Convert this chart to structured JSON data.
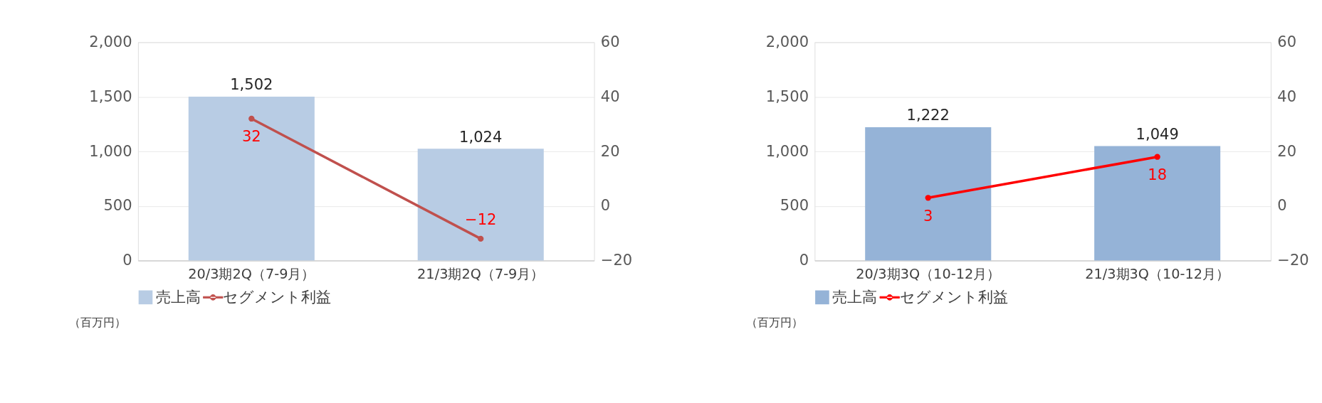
{
  "chart_data": [
    {
      "type": "bar",
      "categories": [
        "20/3期2Q（7-9月）",
        "21/3期2Q（7-9月）"
      ],
      "series": [
        {
          "name": "売上高",
          "color": "#b8cce4",
          "values": [
            1502,
            1024
          ],
          "value_labels": [
            "1,502",
            "1,024"
          ]
        },
        {
          "name": "セグメント利益",
          "type": "line",
          "axis": "y2",
          "color": "#c0504d",
          "values": [
            32,
            -12
          ],
          "value_labels": [
            "32",
            "−12"
          ]
        }
      ],
      "ylim": [
        0,
        2000
      ],
      "yticks": [
        0,
        {
          "value": 500,
          "label": "500"
        },
        {
          "value": 1000,
          "label": "1,000"
        },
        {
          "value": 1500,
          "label": "1,500"
        },
        {
          "value": 2000,
          "label": "2,000"
        }
      ],
      "y2lim": [
        -20,
        60
      ],
      "y2ticks": [
        {
          "value": -20,
          "label": "−20"
        },
        0,
        20,
        40,
        60
      ],
      "legend": "bottom",
      "grid": "y",
      "marker": "circle",
      "line_style": "solid",
      "annotations": [
        "（百万円）"
      ]
    },
    {
      "type": "bar",
      "categories": [
        "20/3期3Q（10-12月）",
        "21/3期3Q（10-12月）"
      ],
      "series": [
        {
          "name": "売上高",
          "color": "#95b3d7",
          "values": [
            1222,
            1049
          ],
          "value_labels": [
            "1,222",
            "1,049"
          ]
        },
        {
          "name": "セグメント利益",
          "type": "line",
          "axis": "y2",
          "color": "#ff0000",
          "values": [
            3,
            18
          ],
          "value_labels": [
            "3",
            "18"
          ]
        }
      ],
      "ylim": [
        0,
        2000
      ],
      "yticks": [
        0,
        {
          "value": 500,
          "label": "500"
        },
        {
          "value": 1000,
          "label": "1,000"
        },
        {
          "value": 1500,
          "label": "1,500"
        },
        {
          "value": 2000,
          "label": "2,000"
        }
      ],
      "y2lim": [
        -20,
        60
      ],
      "y2ticks": [
        {
          "value": -20,
          "label": "−20"
        },
        0,
        20,
        40,
        60
      ],
      "legend": "bottom",
      "grid": "y",
      "marker": "circle",
      "line_style": "solid",
      "annotations": [
        "（百万円）"
      ]
    }
  ]
}
